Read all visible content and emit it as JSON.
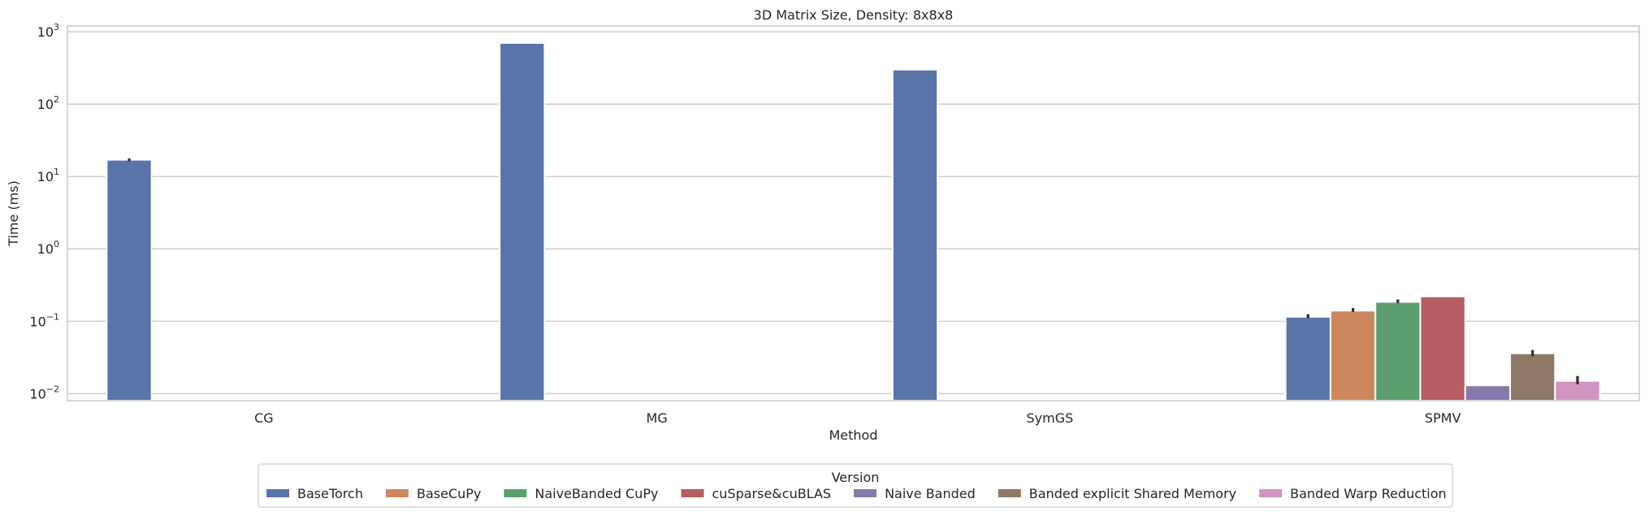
{
  "chart_data": {
    "type": "bar",
    "title": "3D Matrix Size, Density: 8x8x8",
    "xlabel": "Method",
    "ylabel": "Time (ms)",
    "yscale": "log",
    "ylim": [
      0.008,
      1200
    ],
    "y_ticks": [
      {
        "value": 0.01,
        "base": "10",
        "exp": "−2"
      },
      {
        "value": 0.1,
        "base": "10",
        "exp": "−1"
      },
      {
        "value": 1,
        "base": "10",
        "exp": "0"
      },
      {
        "value": 10,
        "base": "10",
        "exp": "1"
      },
      {
        "value": 100,
        "base": "10",
        "exp": "2"
      },
      {
        "value": 1000,
        "base": "10",
        "exp": "3"
      }
    ],
    "grid": true,
    "categories": [
      "CG",
      "MG",
      "SymGS",
      "SPMV"
    ],
    "legend": {
      "title": "Version",
      "placement": "bottom-center"
    },
    "series": [
      {
        "name": "BaseTorch",
        "color": "#5874a8",
        "values": [
          17,
          700,
          300,
          0.115
        ],
        "error": [
          [
            16.2,
            17.8
          ],
          null,
          null,
          [
            0.11,
            0.125
          ]
        ]
      },
      {
        "name": "BaseCuPy",
        "color": "#cc875e",
        "values": [
          null,
          null,
          null,
          0.14
        ],
        "error": [
          null,
          null,
          null,
          [
            0.135,
            0.152
          ]
        ]
      },
      {
        "name": "NaiveBanded CuPy",
        "color": "#5c9f6e",
        "values": [
          null,
          null,
          null,
          0.185
        ],
        "error": [
          null,
          null,
          null,
          [
            0.178,
            0.2
          ]
        ]
      },
      {
        "name": "cuSparse&cuBLAS",
        "color": "#b55d61",
        "values": [
          null,
          null,
          null,
          0.22
        ],
        "error": [
          null,
          null,
          null,
          null
        ]
      },
      {
        "name": "Naive Banded",
        "color": "#8779a9",
        "values": [
          null,
          null,
          null,
          0.013
        ],
        "error": [
          null,
          null,
          null,
          null
        ]
      },
      {
        "name": "Banded explicit Shared Memory",
        "color": "#8e7866",
        "values": [
          null,
          null,
          null,
          0.036
        ],
        "error": [
          null,
          null,
          null,
          [
            0.033,
            0.04
          ]
        ]
      },
      {
        "name": "Banded Warp Reduction",
        "color": "#d195c0",
        "values": [
          null,
          null,
          null,
          0.015
        ],
        "error": [
          null,
          null,
          null,
          [
            0.0135,
            0.0175
          ]
        ]
      }
    ]
  }
}
